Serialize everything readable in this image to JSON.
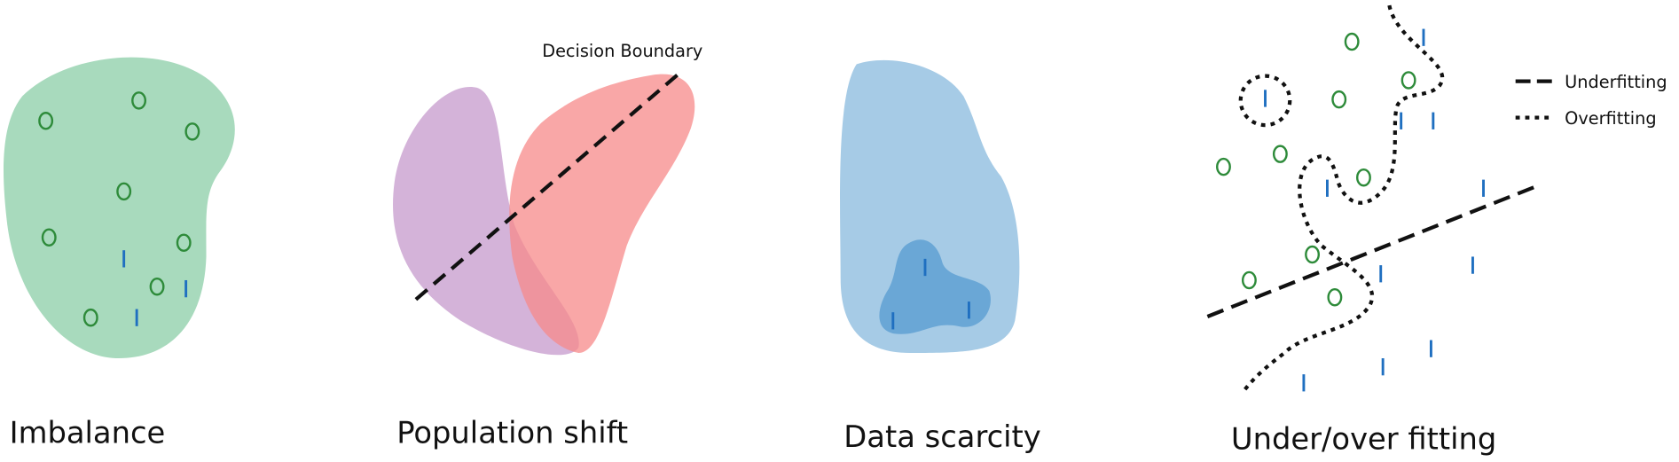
{
  "panels": [
    {
      "title": "Imbalance"
    },
    {
      "title": "Population shift",
      "annotation": "Decision Boundary"
    },
    {
      "title": "Data scarcity"
    },
    {
      "title": "Under/over fitting",
      "legend": [
        "Underfitting",
        "Overfitting"
      ]
    }
  ]
}
